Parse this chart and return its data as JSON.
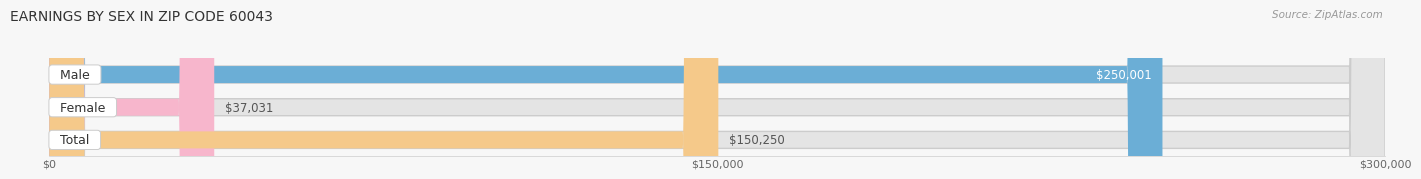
{
  "title": "EARNINGS BY SEX IN ZIP CODE 60043",
  "source": "Source: ZipAtlas.com",
  "categories": [
    "Male",
    "Female",
    "Total"
  ],
  "values": [
    250001,
    37031,
    150250
  ],
  "bar_colors": [
    "#6baed6",
    "#f7b6cc",
    "#f5c98a"
  ],
  "value_labels": [
    "$250,001",
    "$37,031",
    "$150,250"
  ],
  "xlim": [
    0,
    300000
  ],
  "xtick_values": [
    0,
    150000,
    300000
  ],
  "xtick_labels": [
    "$0",
    "$150,000",
    "$300,000"
  ],
  "background_color": "#f7f7f7",
  "bar_background_color": "#e4e4e4",
  "title_fontsize": 10,
  "label_fontsize": 9,
  "value_fontsize": 8.5,
  "bar_height": 0.52
}
